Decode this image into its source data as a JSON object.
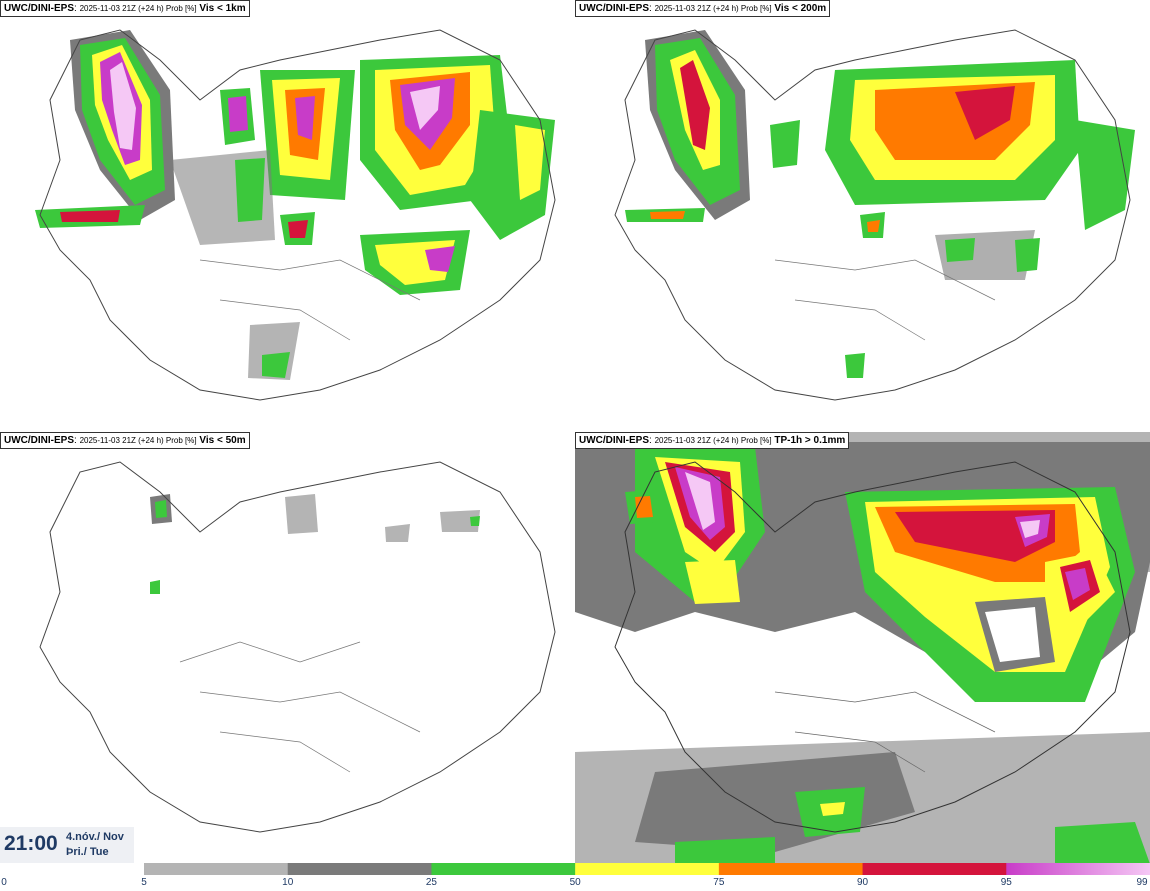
{
  "panels": [
    {
      "model": "UWC/DINI-EPS",
      "meta": "2025-11-03 21Z (+24 h) Prob [%]",
      "threshold": "Vis < 1km"
    },
    {
      "model": "UWC/DINI-EPS",
      "meta": "2025-11-03 21Z (+24 h) Prob [%]",
      "threshold": "Vis < 200m"
    },
    {
      "model": "UWC/DINI-EPS",
      "meta": "2025-11-03 21Z (+24 h) Prob [%]",
      "threshold": "Vis < 50m"
    },
    {
      "model": "UWC/DINI-EPS",
      "meta": "2025-11-03 21Z (+24 h) Prob [%]",
      "threshold": "TP-1h > 0.1mm"
    }
  ],
  "valid_time": {
    "time": "21:00",
    "date": "4.nóv./ Nov",
    "weekday": "Þri./ Tue"
  },
  "legend": {
    "ticks": [
      "0",
      "5",
      "10",
      "25",
      "50",
      "75",
      "90",
      "95",
      "99"
    ],
    "bands": [
      {
        "from": 5,
        "to": 10,
        "color": "#b4b4b4"
      },
      {
        "from": 10,
        "to": 25,
        "color": "#7a7a7a"
      },
      {
        "from": 25,
        "to": 50,
        "color": "#3cc83c"
      },
      {
        "from": 50,
        "to": 75,
        "color": "#ffff3c"
      },
      {
        "from": 75,
        "to": 90,
        "color": "#ff7a00"
      },
      {
        "from": 90,
        "to": 95,
        "color": "#d4143c"
      },
      {
        "from": 95,
        "to": 99,
        "color": "#c83cc8"
      }
    ],
    "top_color": "#f5c8f5"
  }
}
